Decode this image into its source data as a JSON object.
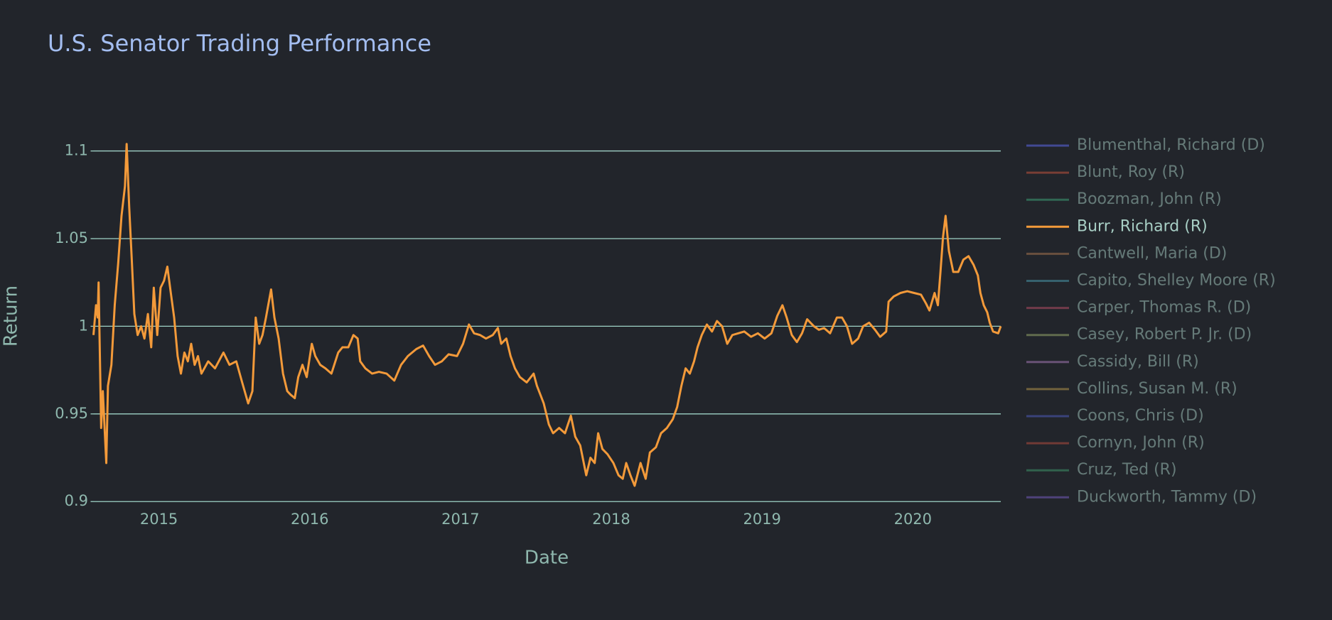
{
  "chart_data": {
    "type": "line",
    "title": "U.S. Senator Trading Performance",
    "x_label": "Date",
    "y_label": "Return",
    "x": [
      2014.566,
      2014.583,
      2014.594,
      2014.6,
      2014.617,
      2014.628,
      2014.651,
      2014.662,
      2014.685,
      2014.707,
      2014.73,
      2014.752,
      2014.775,
      2014.786,
      2014.803,
      2014.82,
      2014.837,
      2014.859,
      2014.882,
      2014.904,
      2014.927,
      2014.949,
      2014.966,
      2014.989,
      2015.011,
      2015.034,
      2015.056,
      2015.079,
      2015.101,
      2015.124,
      2015.146,
      2015.169,
      2015.192,
      2015.214,
      2015.237,
      2015.259,
      2015.282,
      2015.327,
      2015.372,
      2015.428,
      2015.468,
      2015.513,
      2015.552,
      2015.592,
      2015.62,
      2015.642,
      2015.665,
      2015.687,
      2015.71,
      2015.744,
      2015.766,
      2015.794,
      2015.823,
      2015.851,
      2015.873,
      2015.901,
      2015.924,
      2015.952,
      2015.98,
      2016.014,
      2016.037,
      2016.07,
      2016.104,
      2016.144,
      2016.189,
      2016.217,
      2016.256,
      2016.29,
      2016.318,
      2016.335,
      2016.369,
      2016.414,
      2016.459,
      2016.51,
      2016.561,
      2016.606,
      2016.651,
      2016.707,
      2016.752,
      2016.792,
      2016.831,
      2016.876,
      2016.921,
      2016.977,
      2017.017,
      2017.056,
      2017.09,
      2017.13,
      2017.169,
      2017.214,
      2017.248,
      2017.27,
      2017.304,
      2017.332,
      2017.361,
      2017.394,
      2017.439,
      2017.485,
      2017.507,
      2017.552,
      2017.586,
      2017.614,
      2017.654,
      2017.693,
      2017.732,
      2017.761,
      2017.794,
      2017.834,
      2017.862,
      2017.89,
      2017.913,
      2017.941,
      2017.975,
      2018.014,
      2018.048,
      2018.076,
      2018.099,
      2018.127,
      2018.155,
      2018.194,
      2018.228,
      2018.256,
      2018.296,
      2018.33,
      2018.369,
      2018.408,
      2018.437,
      2018.465,
      2018.493,
      2018.521,
      2018.549,
      2018.572,
      2018.6,
      2018.634,
      2018.668,
      2018.701,
      2018.735,
      2018.769,
      2018.803,
      2018.842,
      2018.882,
      2018.927,
      2018.972,
      2019.017,
      2019.062,
      2019.101,
      2019.135,
      2019.163,
      2019.197,
      2019.231,
      2019.265,
      2019.299,
      2019.344,
      2019.377,
      2019.411,
      2019.451,
      2019.496,
      2019.53,
      2019.563,
      2019.597,
      2019.637,
      2019.67,
      2019.71,
      2019.749,
      2019.783,
      2019.823,
      2019.839,
      2019.873,
      2019.918,
      2019.963,
      2020.008,
      2020.054,
      2020.087,
      2020.11,
      2020.144,
      2020.166,
      2020.183,
      2020.2,
      2020.217,
      2020.239,
      2020.268,
      2020.301,
      2020.335,
      2020.369,
      2020.403,
      2020.431,
      2020.448,
      2020.47,
      2020.493,
      2020.51,
      2020.532,
      2020.566,
      2020.583
    ],
    "series": [
      {
        "name": "Blumenthal, Richard (D)",
        "color": "#636efa",
        "visible": false
      },
      {
        "name": "Blunt, Roy (R)",
        "color": "#d0573f",
        "visible": false
      },
      {
        "name": "Boozman, John (R)",
        "color": "#3fa97c",
        "visible": false
      },
      {
        "name": "Burr, Richard (R)",
        "color": "#f39a3a",
        "visible": true,
        "values": [
          0.995,
          1.012,
          1.005,
          1.025,
          0.942,
          0.963,
          0.922,
          0.966,
          0.978,
          1.012,
          1.036,
          1.063,
          1.08,
          1.104,
          1.068,
          1.038,
          1.007,
          0.995,
          1.0,
          0.993,
          1.007,
          0.988,
          1.022,
          0.995,
          1.022,
          1.026,
          1.034,
          1.019,
          1.005,
          0.983,
          0.973,
          0.985,
          0.98,
          0.99,
          0.978,
          0.983,
          0.973,
          0.98,
          0.976,
          0.985,
          0.978,
          0.98,
          0.968,
          0.956,
          0.963,
          1.005,
          0.99,
          0.995,
          1.005,
          1.021,
          1.005,
          0.993,
          0.973,
          0.963,
          0.961,
          0.959,
          0.971,
          0.978,
          0.971,
          0.99,
          0.983,
          0.978,
          0.976,
          0.973,
          0.985,
          0.988,
          0.988,
          0.995,
          0.993,
          0.98,
          0.976,
          0.973,
          0.974,
          0.973,
          0.969,
          0.978,
          0.983,
          0.987,
          0.989,
          0.983,
          0.978,
          0.98,
          0.984,
          0.983,
          0.99,
          1.001,
          0.996,
          0.995,
          0.993,
          0.995,
          0.999,
          0.99,
          0.993,
          0.983,
          0.976,
          0.971,
          0.968,
          0.973,
          0.966,
          0.956,
          0.944,
          0.939,
          0.942,
          0.939,
          0.949,
          0.937,
          0.932,
          0.915,
          0.925,
          0.922,
          0.939,
          0.93,
          0.927,
          0.922,
          0.915,
          0.913,
          0.922,
          0.915,
          0.909,
          0.922,
          0.913,
          0.928,
          0.931,
          0.939,
          0.942,
          0.947,
          0.954,
          0.966,
          0.976,
          0.973,
          0.98,
          0.988,
          0.995,
          1.001,
          0.997,
          1.003,
          1.0,
          0.99,
          0.995,
          0.996,
          0.997,
          0.994,
          0.996,
          0.993,
          0.996,
          1.006,
          1.012,
          1.005,
          0.995,
          0.991,
          0.996,
          1.004,
          1.0,
          0.998,
          0.999,
          0.996,
          1.005,
          1.005,
          1.0,
          0.99,
          0.993,
          1.0,
          1.002,
          0.998,
          0.994,
          0.997,
          1.014,
          1.017,
          1.019,
          1.02,
          1.019,
          1.018,
          1.013,
          1.009,
          1.019,
          1.012,
          1.031,
          1.051,
          1.063,
          1.043,
          1.031,
          1.031,
          1.038,
          1.04,
          1.035,
          1.029,
          1.019,
          1.012,
          1.008,
          1.002,
          0.997,
          0.996,
          1.0
        ]
      },
      {
        "name": "Cantwell, Maria (D)",
        "color": "#b07a52",
        "visible": false
      },
      {
        "name": "Capito, Shelley Moore (R)",
        "color": "#4aa0b0",
        "visible": false
      },
      {
        "name": "Carper, Thomas R. (D)",
        "color": "#c0506a",
        "visible": false
      },
      {
        "name": "Casey, Robert P. Jr. (D)",
        "color": "#a0b070",
        "visible": false
      },
      {
        "name": "Cassidy, Bill (R)",
        "color": "#b080c0",
        "visible": false
      },
      {
        "name": "Collins, Susan M. (R)",
        "color": "#c0a050",
        "visible": false
      },
      {
        "name": "Coons, Chris (D)",
        "color": "#5060c8",
        "visible": false
      },
      {
        "name": "Cornyn, John (R)",
        "color": "#c05040",
        "visible": false
      },
      {
        "name": "Cruz, Ted (R)",
        "color": "#40a070",
        "visible": false
      },
      {
        "name": "Duckworth, Tammy (D)",
        "color": "#7b60c8",
        "visible": false
      }
    ],
    "xlim": [
      2014.566,
      2020.583
    ],
    "xticks": [
      2015,
      2016,
      2017,
      2018,
      2019,
      2020
    ],
    "ylim": [
      0.899,
      1.113
    ],
    "yticks": [
      0.9,
      0.95,
      1,
      1.05,
      1.1
    ],
    "grid": true,
    "legend": "right"
  }
}
